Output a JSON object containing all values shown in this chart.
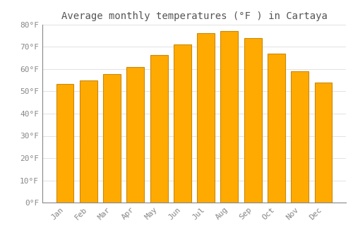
{
  "title": "Average monthly temperatures (°F ) in Cartaya",
  "months": [
    "Jan",
    "Feb",
    "Mar",
    "Apr",
    "May",
    "Jun",
    "Jul",
    "Aug",
    "Sep",
    "Oct",
    "Nov",
    "Dec"
  ],
  "values": [
    53.3,
    55.0,
    57.8,
    61.0,
    66.3,
    71.2,
    76.1,
    77.0,
    74.0,
    67.0,
    59.2,
    54.0
  ],
  "bar_color": "#FFAA00",
  "bar_edge_color": "#CC8800",
  "background_color": "#FFFFFF",
  "plot_bg_color": "#FFFFFF",
  "grid_color": "#DDDDDD",
  "text_color": "#888888",
  "title_color": "#555555",
  "ylim": [
    0,
    80
  ],
  "yticks": [
    0,
    10,
    20,
    30,
    40,
    50,
    60,
    70,
    80
  ],
  "ytick_labels": [
    "0°F",
    "10°F",
    "20°F",
    "30°F",
    "40°F",
    "50°F",
    "60°F",
    "70°F",
    "80°F"
  ],
  "title_fontsize": 10,
  "tick_fontsize": 8,
  "font_family": "monospace"
}
